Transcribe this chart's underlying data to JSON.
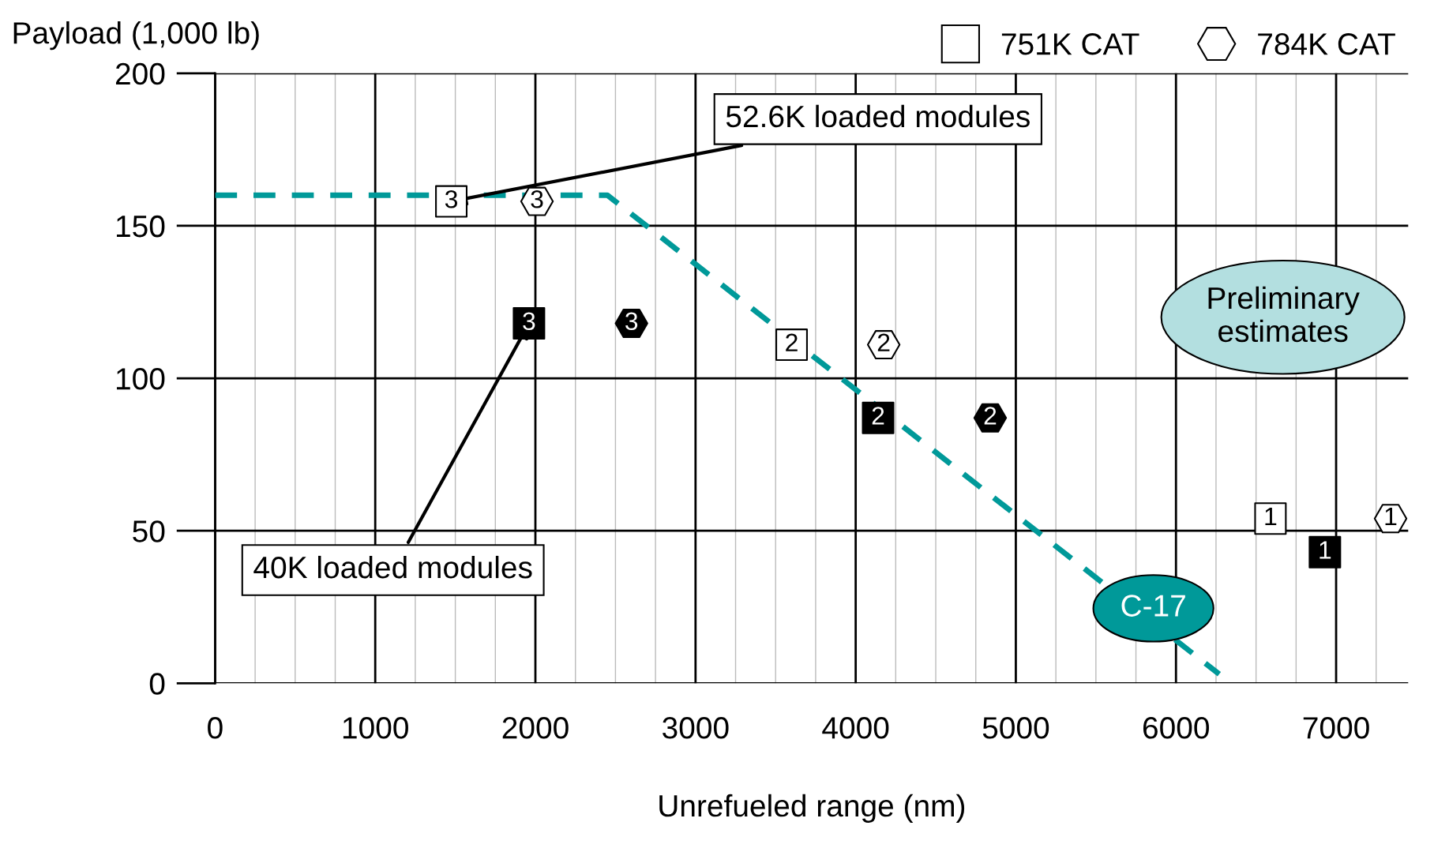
{
  "chart_data": {
    "type": "scatter",
    "ylabel": "Payload (1,000 lb)",
    "xlabel": "Unrefueled range (nm)",
    "xlim": [
      0,
      7450
    ],
    "xticks": [
      0,
      1000,
      2000,
      3000,
      4000,
      5000,
      6000,
      7000
    ],
    "ylim": [
      0,
      200
    ],
    "yticks": [
      0,
      50,
      100,
      150,
      200
    ],
    "grid": true,
    "legend": "top right",
    "series": [
      {
        "name": "C-17",
        "type": "line",
        "color": "#009999",
        "line_style": "dashed",
        "marker": "none",
        "x": [
          0,
          2450,
          6270
        ],
        "values": [
          160,
          160,
          3
        ]
      },
      {
        "name": "751K CAT",
        "color": "#ffffff",
        "marker": "square",
        "x": [
          1475,
          3600,
          6590
        ],
        "values": [
          158,
          111,
          54
        ]
      },
      {
        "name": "784K CAT",
        "color": "#ffffff",
        "x": [
          2010,
          4175,
          7340
        ],
        "values": [
          158,
          111,
          54
        ]
      },
      {
        "color": "#000000",
        "marker": "square",
        "x": [
          1960,
          4140,
          6930
        ],
        "values": [
          118,
          87,
          43
        ]
      },
      {
        "color": "#000000",
        "x": [
          2600,
          4840
        ],
        "values": [
          118,
          87
        ]
      }
    ],
    "annotations": [
      {
        "text": "52.6K loaded modules",
        "x": 1475,
        "y": 158
      },
      {
        "text": "40K loaded modules",
        "x": 1960,
        "y": 118
      },
      "Preliminary\nestimates",
      {
        "text": "3",
        "x": 1475,
        "y": 158
      },
      {
        "text": "2",
        "x": 3600,
        "y": 111
      },
      {
        "text": "1",
        "x": 6590,
        "y": 54
      },
      {
        "text": "3",
        "x": 2010,
        "y": 158
      },
      {
        "text": "2",
        "x": 4175,
        "y": 111
      },
      {
        "text": "1",
        "x": 7340,
        "y": 54
      },
      {
        "text": "3",
        "x": 1960,
        "y": 118
      },
      {
        "text": "2",
        "x": 4140,
        "y": 87
      },
      {
        "text": "1",
        "x": 6930,
        "y": 43
      },
      {
        "text": "3",
        "x": 2600,
        "y": 118
      },
      {
        "text": "2",
        "x": 4840,
        "y": 87
      }
    ]
  }
}
